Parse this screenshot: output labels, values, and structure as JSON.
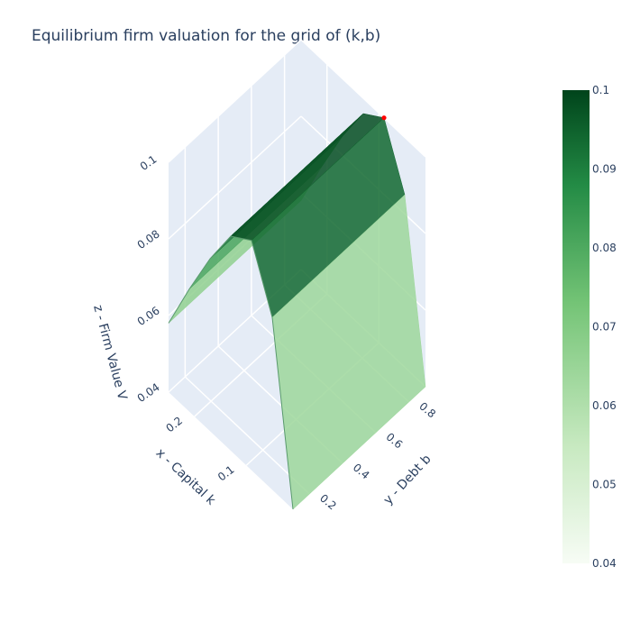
{
  "chart_data": {
    "type": "surface",
    "title": "Equilibrium firm valuation for the grid of (k,b)",
    "xlabel": "x - Capital k",
    "ylabel": "y - Debt b",
    "zlabel": "z - Firm Value V",
    "x_ticks": [
      "0.1",
      "0.2"
    ],
    "y_ticks": [
      "0.2",
      "0.4",
      "0.6",
      "0.8"
    ],
    "z_ticks": [
      "0.04",
      "0.06",
      "0.08",
      "0.1"
    ],
    "xlim": [
      0.01,
      0.25
    ],
    "ylim": [
      0.1,
      0.9
    ],
    "zlim": [
      0.04,
      0.1
    ],
    "colorscale": "Greens",
    "colorbar": {
      "ticks": [
        "0.1",
        "0.09",
        "0.08",
        "0.07",
        "0.06",
        "0.05",
        "0.04"
      ],
      "range": [
        0.04,
        0.1
      ],
      "colors": [
        "#f7fcf5",
        "#c7e9c0",
        "#74c476",
        "#238b45",
        "#00441b"
      ]
    },
    "surface": {
      "description_points": [
        {
          "k": 0.01,
          "v": 0.04
        },
        {
          "k": 0.05,
          "v": 0.085
        },
        {
          "k": 0.09,
          "v": 0.1
        },
        {
          "k": 0.13,
          "v": 0.096
        },
        {
          "k": 0.17,
          "v": 0.085
        },
        {
          "k": 0.21,
          "v": 0.072
        },
        {
          "k": 0.25,
          "v": 0.058
        }
      ],
      "constant_in": "b"
    },
    "marker": {
      "k": 0.09,
      "b": 0.9,
      "v": 0.1,
      "color": "#ff0000"
    }
  }
}
